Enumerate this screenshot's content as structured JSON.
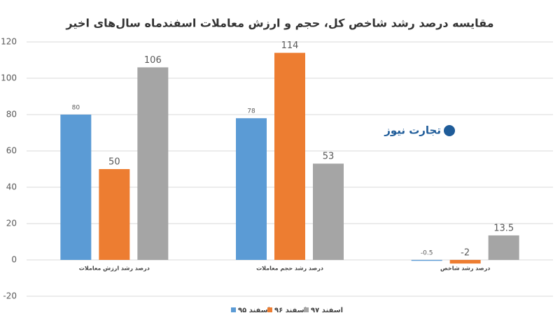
{
  "chart_data": {
    "type": "bar",
    "title": "مقایسه درصد رشد شاخص کل، حجم و ارزش معاملات اسفندماه سال‌های اخیر",
    "watermark": "تجارت نیوز",
    "categories": [
      "درصد رشد ارزش معاملات",
      "درصد رشد حجم معاملات",
      "درصد رشد شاخص"
    ],
    "series": [
      {
        "name": "اسفند ۹۵",
        "color": "#5b9bd5",
        "values": [
          80,
          78,
          -0.5
        ]
      },
      {
        "name": "اسفند ۹۶",
        "color": "#ed7d31",
        "values": [
          50,
          114,
          -2
        ]
      },
      {
        "name": "اسفند ۹۷",
        "color": "#a5a5a5",
        "values": [
          106,
          53,
          13.5
        ]
      }
    ],
    "ylim": [
      -20,
      120
    ],
    "yticks": [
      -20,
      0,
      20,
      40,
      60,
      80,
      100,
      120
    ],
    "grid": true,
    "legend": "bottom"
  }
}
